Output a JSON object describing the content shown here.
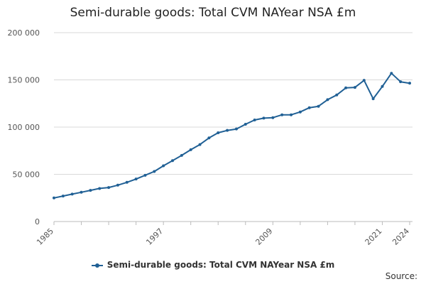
{
  "chart_data": {
    "type": "line",
    "title": "Semi-durable goods: Total CVM NAYear NSA £m",
    "xlabel": "",
    "ylabel": "",
    "ylim": [
      0,
      200000
    ],
    "xlim": [
      1985,
      2024
    ],
    "y_ticks": [
      0,
      50000,
      100000,
      150000,
      200000
    ],
    "y_tick_labels": [
      "0",
      "50 000",
      "100 000",
      "150 000",
      "200 000"
    ],
    "x_ticks": [
      1985,
      1997,
      2009,
      2021,
      2024
    ],
    "x_tick_labels": [
      "1985",
      "1997",
      "2009",
      "2021",
      "2024"
    ],
    "x": [
      1985,
      1986,
      1987,
      1988,
      1989,
      1990,
      1991,
      1992,
      1993,
      1994,
      1995,
      1996,
      1997,
      1998,
      1999,
      2000,
      2001,
      2002,
      2003,
      2004,
      2005,
      2006,
      2007,
      2008,
      2009,
      2010,
      2011,
      2012,
      2013,
      2014,
      2015,
      2016,
      2017,
      2018,
      2019,
      2020,
      2021,
      2022,
      2023,
      2024
    ],
    "series": [
      {
        "name": "Semi-durable goods: Total CVM NAYear NSA £m",
        "color": "#206095",
        "values": [
          25000,
          27000,
          29000,
          31000,
          33000,
          35000,
          36000,
          38500,
          41500,
          45000,
          49000,
          53000,
          59000,
          64500,
          70000,
          76000,
          81500,
          88500,
          94000,
          96500,
          98000,
          103000,
          107500,
          109500,
          110000,
          113000,
          113000,
          116000,
          120500,
          122000,
          129000,
          134000,
          141500,
          142000,
          149500,
          130000,
          143000,
          157000,
          148000,
          146500
        ]
      }
    ]
  },
  "legend": {
    "label": "Semi-durable goods: Total CVM NAYear NSA £m"
  },
  "footer": {
    "source_label": "Source:"
  }
}
